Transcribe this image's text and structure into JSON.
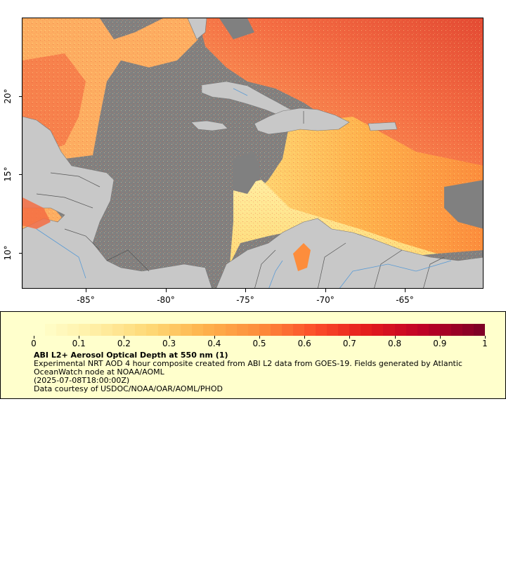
{
  "map": {
    "longitude_labels": [
      "-85°",
      "-80°",
      "-75°",
      "-70°",
      "-65°"
    ],
    "latitude_labels": [
      "20°",
      "15°",
      "10°"
    ],
    "colors": {
      "ocean_no_data": "#808080",
      "land": "#c8c8c8",
      "borders": "#555555",
      "rivers": "#5a9bd5"
    }
  },
  "legend": {
    "colorbar_labels": [
      "0",
      "0.1",
      "0.2",
      "0.3",
      "0.4",
      "0.5",
      "0.6",
      "0.7",
      "0.8",
      "0.9",
      "1"
    ],
    "colorbar_colors": [
      "#ffffcc",
      "#ffefa5",
      "#fed976",
      "#feb24c",
      "#fd8d3c",
      "#fc4e2a",
      "#e31a1c",
      "#bd0026",
      "#800026"
    ],
    "title": "ABI L2+ Aerosol Optical Depth at 550 nm (1)",
    "line1": "Experimental NRT AOD 4 hour composite created from ABI L2 data from GOES-19. Fields generated by Atlantic OceanWatch node at NOAA/AOML",
    "line2": "(2025-07-08T18:00:00Z)",
    "line3": "Data courtesy of USDOC/NOAA/OAR/AOML/PHOD"
  }
}
